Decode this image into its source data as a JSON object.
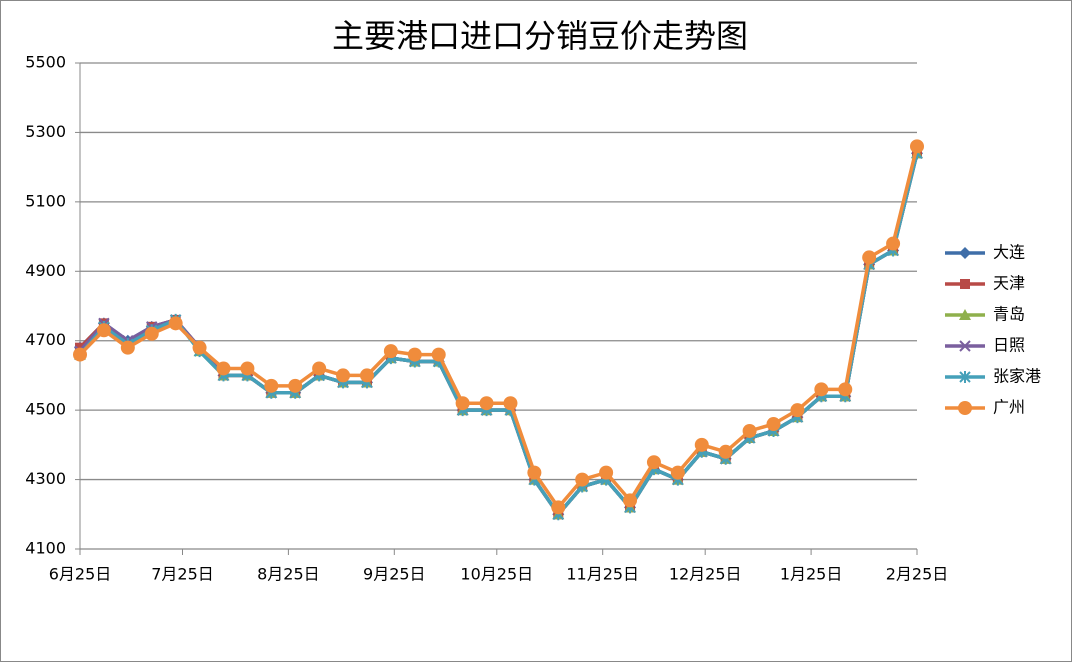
{
  "chart_data": {
    "type": "line",
    "title": "主要港口进口分销豆价走势图",
    "x": [
      0,
      7,
      14,
      21,
      28,
      35,
      42,
      49,
      56,
      63,
      70,
      77,
      84,
      91,
      98,
      105,
      112,
      119,
      126,
      133,
      140,
      147,
      154,
      161,
      168,
      175,
      182,
      189,
      196,
      203,
      210,
      217,
      224,
      231,
      238,
      245
    ],
    "xlim": [
      0,
      245
    ],
    "xticks": [
      {
        "value": 0,
        "label": "6月25日"
      },
      {
        "value": 30,
        "label": "7月25日"
      },
      {
        "value": 61,
        "label": "8月25日"
      },
      {
        "value": 92,
        "label": "9月25日"
      },
      {
        "value": 122,
        "label": "10月25日"
      },
      {
        "value": 153,
        "label": "11月25日"
      },
      {
        "value": 183,
        "label": "12月25日"
      },
      {
        "value": 214,
        "label": "1月25日"
      },
      {
        "value": 245,
        "label": "2月25日"
      }
    ],
    "ylim": [
      4100,
      5500
    ],
    "yticks": [
      4100,
      4300,
      4500,
      4700,
      4900,
      5100,
      5300,
      5500
    ],
    "grid": true,
    "legend": "right",
    "series": [
      {
        "name": "大连",
        "color": "#3f6ea8",
        "marker": "diamond",
        "values": [
          4680,
          4750,
          4700,
          4740,
          4760,
          4680,
          4600,
          4600,
          4550,
          4550,
          4600,
          4580,
          4580,
          4650,
          4640,
          4640,
          4500,
          4500,
          4500,
          4300,
          4200,
          4280,
          4300,
          4220,
          4330,
          4300,
          4380,
          4360,
          4420,
          4440,
          4480,
          4540,
          4540,
          4920,
          4960,
          5240
        ]
      },
      {
        "name": "天津",
        "color": "#b84a47",
        "marker": "square",
        "values": [
          4680,
          4750,
          4690,
          4740,
          4760,
          4680,
          4600,
          4600,
          4550,
          4550,
          4600,
          4580,
          4580,
          4650,
          4640,
          4640,
          4500,
          4500,
          4500,
          4300,
          4200,
          4280,
          4300,
          4220,
          4330,
          4300,
          4380,
          4360,
          4420,
          4440,
          4480,
          4540,
          4540,
          4920,
          4960,
          5240
        ]
      },
      {
        "name": "青岛",
        "color": "#8fb04c",
        "marker": "triangle",
        "values": [
          4660,
          4740,
          4690,
          4730,
          4760,
          4670,
          4600,
          4600,
          4550,
          4550,
          4600,
          4580,
          4580,
          4650,
          4640,
          4640,
          4500,
          4500,
          4500,
          4300,
          4200,
          4280,
          4300,
          4220,
          4330,
          4300,
          4380,
          4360,
          4420,
          4440,
          4480,
          4540,
          4540,
          4920,
          4960,
          5240
        ]
      },
      {
        "name": "日照",
        "color": "#7a5f9e",
        "marker": "x",
        "values": [
          4670,
          4750,
          4700,
          4740,
          4760,
          4680,
          4600,
          4600,
          4550,
          4550,
          4600,
          4580,
          4580,
          4650,
          4640,
          4640,
          4500,
          4500,
          4500,
          4300,
          4200,
          4280,
          4300,
          4220,
          4330,
          4300,
          4380,
          4360,
          4420,
          4440,
          4480,
          4540,
          4540,
          4920,
          4960,
          5240
        ]
      },
      {
        "name": "张家港",
        "color": "#45a0b9",
        "marker": "asterisk",
        "values": [
          4660,
          4740,
          4690,
          4730,
          4760,
          4670,
          4600,
          4600,
          4550,
          4550,
          4600,
          4580,
          4580,
          4650,
          4640,
          4640,
          4500,
          4500,
          4500,
          4300,
          4200,
          4280,
          4300,
          4220,
          4330,
          4300,
          4380,
          4360,
          4420,
          4440,
          4480,
          4540,
          4540,
          4920,
          4960,
          5240
        ]
      },
      {
        "name": "广州",
        "color": "#f08c3c",
        "marker": "circle",
        "values": [
          4660,
          4730,
          4680,
          4720,
          4750,
          4680,
          4620,
          4620,
          4570,
          4570,
          4620,
          4600,
          4600,
          4670,
          4660,
          4660,
          4520,
          4520,
          4520,
          4320,
          4220,
          4300,
          4320,
          4240,
          4350,
          4320,
          4400,
          4380,
          4440,
          4460,
          4500,
          4560,
          4560,
          4940,
          4980,
          5260
        ]
      }
    ]
  }
}
